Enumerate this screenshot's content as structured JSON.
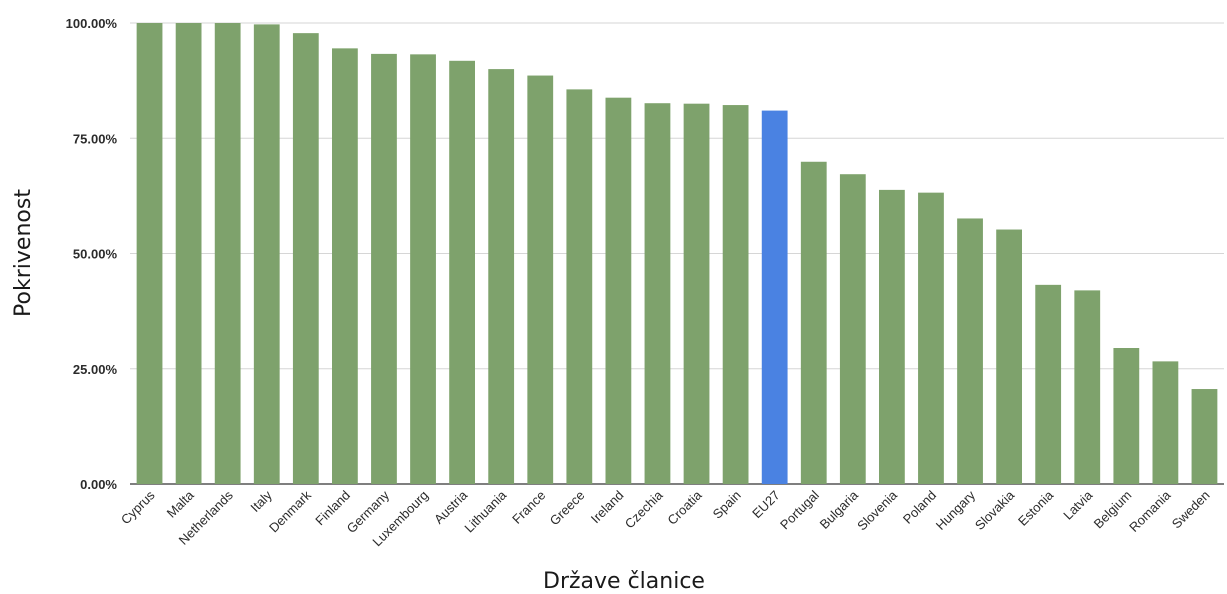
{
  "chart_data": {
    "type": "bar",
    "xlabel": "Države članice",
    "ylabel": "Pokrivenost",
    "ylim": [
      0,
      100
    ],
    "yticks": [
      0,
      25,
      50,
      75,
      100
    ],
    "ytick_labels": [
      "0.00%",
      "25.00%",
      "50.00%",
      "75.00%",
      "100.00%"
    ],
    "grid": true,
    "categories": [
      "Cyprus",
      "Malta",
      "Netherlands",
      "Italy",
      "Denmark",
      "Finland",
      "Germany",
      "Luxembourg",
      "Austria",
      "Lithuania",
      "France",
      "Greece",
      "Ireland",
      "Czechia",
      "Croatia",
      "Spain",
      "EU27",
      "Portugal",
      "Bulgaria",
      "Slovenia",
      "Poland",
      "Hungary",
      "Slovakia",
      "Estonia",
      "Latvia",
      "Belgium",
      "Romania",
      "Sweden"
    ],
    "values": [
      100,
      100,
      100,
      99.7,
      97.8,
      94.5,
      93.3,
      93.2,
      91.8,
      90.0,
      88.6,
      85.6,
      83.8,
      82.6,
      82.5,
      82.2,
      81.0,
      69.9,
      67.2,
      63.8,
      63.2,
      57.6,
      55.2,
      43.2,
      42.0,
      29.5,
      26.6,
      20.6
    ],
    "colors": {
      "default": "#7ea26c",
      "highlight": "#4a82e2"
    },
    "highlight_category": "EU27"
  }
}
